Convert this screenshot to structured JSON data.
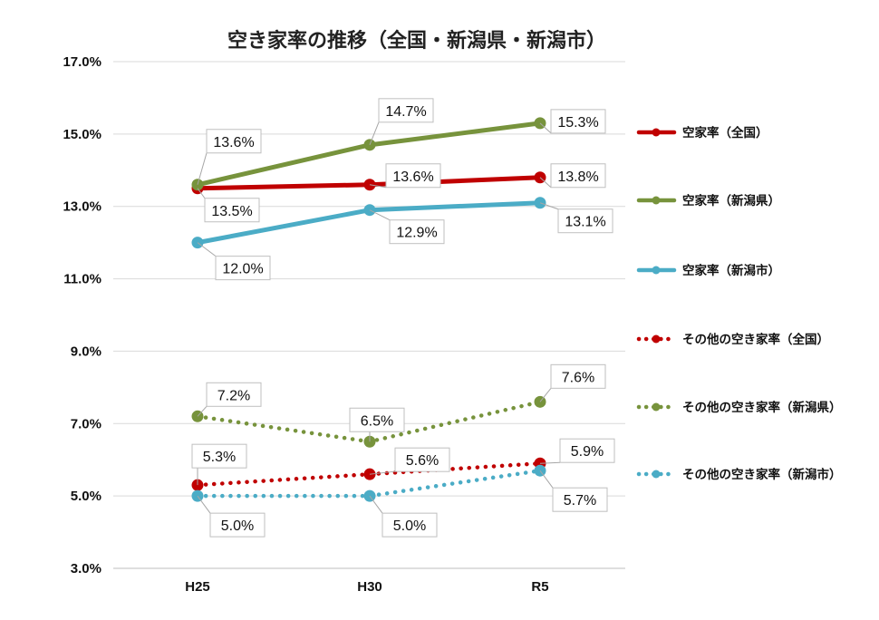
{
  "chart_data": {
    "type": "line",
    "title": "空き家率の推移（全国・新潟県・新潟市）",
    "categories": [
      "H25",
      "H30",
      "R5"
    ],
    "ylim": [
      3.0,
      17.0
    ],
    "yticks": [
      "17.0%",
      "15.0%",
      "13.0%",
      "11.0%",
      "9.0%",
      "7.0%",
      "5.0%",
      "3.0%"
    ],
    "grid": true,
    "legend_position": "right",
    "series": [
      {
        "name": "空家率（全国）",
        "values": [
          13.5,
          13.6,
          13.8
        ],
        "labels": [
          "13.5%",
          "13.6%",
          "13.8%"
        ],
        "color": "#c00000",
        "style": "solid"
      },
      {
        "name": "空家率（新潟県）",
        "values": [
          13.6,
          14.7,
          15.3
        ],
        "labels": [
          "13.6%",
          "14.7%",
          "15.3%"
        ],
        "color": "#77933c",
        "style": "solid"
      },
      {
        "name": "空家率（新潟市）",
        "values": [
          12.0,
          12.9,
          13.1
        ],
        "labels": [
          "12.0%",
          "12.9%",
          "13.1%"
        ],
        "color": "#4bacc6",
        "style": "solid"
      },
      {
        "name": "その他の空き家率（全国）",
        "values": [
          5.3,
          5.6,
          5.9
        ],
        "labels": [
          "5.3%",
          "5.6%",
          "5.9%"
        ],
        "color": "#c00000",
        "style": "dotted"
      },
      {
        "name": "その他の空き家率（新潟県）",
        "values": [
          7.2,
          6.5,
          7.6
        ],
        "labels": [
          "7.2%",
          "6.5%",
          "7.6%"
        ],
        "color": "#77933c",
        "style": "dotted"
      },
      {
        "name": "その他の空き家率（新潟市）",
        "values": [
          5.0,
          5.0,
          5.7
        ],
        "labels": [
          "5.0%",
          "5.0%",
          "5.7%"
        ],
        "color": "#4bacc6",
        "style": "dotted"
      }
    ]
  }
}
